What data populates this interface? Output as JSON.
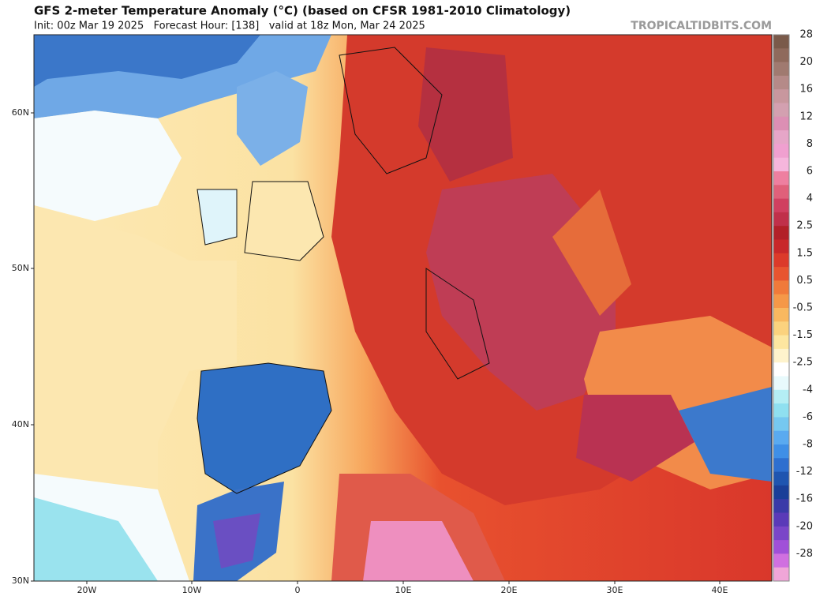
{
  "header": {
    "title": "GFS 2-meter Temperature Anomaly (°C) (based on CFSR 1981-2010 Climatology)",
    "subtitle": "Init: 00z Mar 19 2025   Forecast Hour: [138]   valid at 18z Mon, Mar 24 2025",
    "watermark": "TROPICALTIDBITS.COM"
  },
  "map": {
    "lat_labels": [
      "60N",
      "50N",
      "40N",
      "30N"
    ],
    "lon_labels": [
      "20W",
      "10W",
      "0",
      "10E",
      "20E",
      "30E",
      "40E"
    ]
  },
  "colorbar": {
    "labels": [
      "28",
      "20",
      "16",
      "12",
      "8",
      "6",
      "4",
      "2.5",
      "1.5",
      "0.5",
      "-0.5",
      "-1.5",
      "-2.5",
      "-4",
      "-6",
      "-8",
      "-12",
      "-16",
      "-20",
      "-28"
    ]
  }
}
